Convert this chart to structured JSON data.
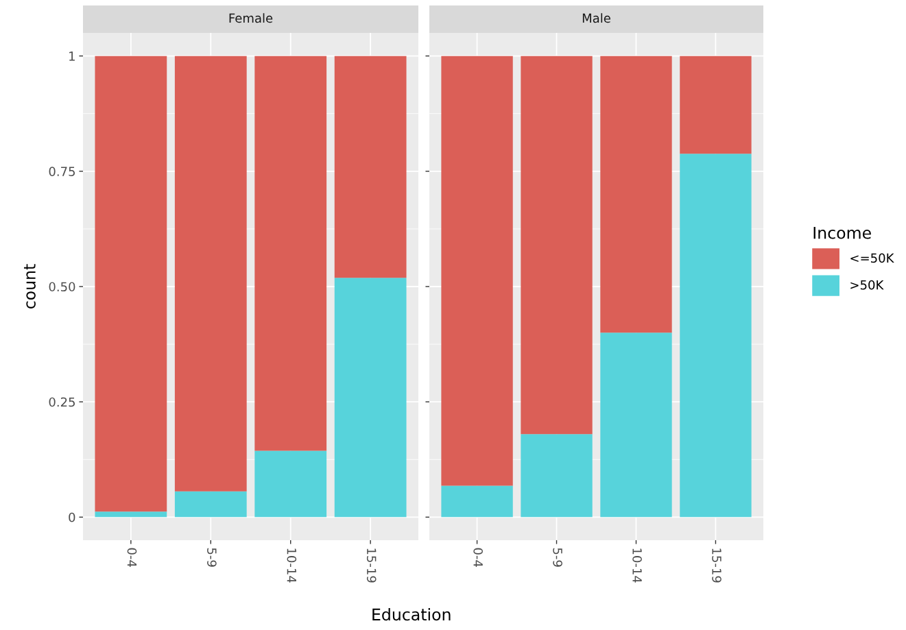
{
  "chart_data": [
    {
      "type": "bar",
      "title": "Female",
      "xlabel": "Education",
      "ylabel": "count",
      "stacked": true,
      "categories": [
        "0-4",
        "5-9",
        "10-14",
        "15-19"
      ],
      "series": [
        {
          "name": ">50K",
          "color": "#57d3db",
          "values": [
            0.012,
            0.056,
            0.144,
            0.519
          ]
        },
        {
          "name": "<=50K",
          "color": "#db5f57",
          "values": [
            0.988,
            0.944,
            0.856,
            0.481
          ]
        }
      ],
      "ylim": [
        -0.05,
        1.05
      ],
      "yticks": [
        0,
        0.25,
        {
          "value": 0.5,
          "label": "0.50"
        },
        0.75,
        1
      ],
      "grid": true,
      "legend": "right",
      "legend_title": "Income"
    },
    {
      "type": "bar",
      "title": "Male",
      "stacked": true,
      "categories": [
        "0-4",
        "5-9",
        "10-14",
        "15-19"
      ],
      "series": [
        {
          "color": "#57d3db",
          "values": [
            0.068,
            0.18,
            0.4,
            0.788
          ]
        },
        {
          "color": "#db5f57",
          "values": [
            0.932,
            0.82,
            0.6,
            0.212
          ]
        }
      ],
      "ylim": [
        -0.05,
        1.05
      ],
      "yticks": [
        0,
        0.25,
        0.5,
        0.75,
        1
      ],
      "grid": true,
      "tick_labels": "x"
    }
  ]
}
